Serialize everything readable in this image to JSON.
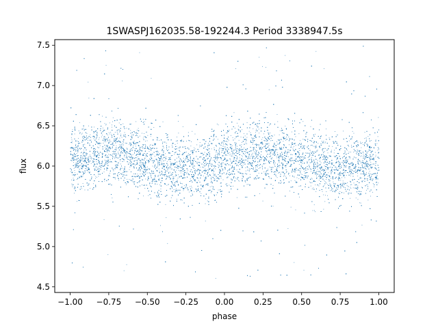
{
  "chart_data": {
    "type": "scatter",
    "title": "1SWASPJ162035.58-192244.3 Period 3338947.5s",
    "xlabel": "phase",
    "ylabel": "flux",
    "xlim": [
      -1.1,
      1.1
    ],
    "ylim": [
      4.43,
      7.57
    ],
    "x_ticks": [
      -1.0,
      -0.75,
      -0.5,
      -0.25,
      0.0,
      0.25,
      0.5,
      0.75,
      1.0
    ],
    "x_tick_labels": [
      "−1.00",
      "−0.75",
      "−0.50",
      "−0.25",
      "0.00",
      "0.25",
      "0.50",
      "0.75",
      "1.00"
    ],
    "y_ticks": [
      4.5,
      5.0,
      5.5,
      6.0,
      6.5,
      7.0,
      7.5
    ],
    "y_tick_labels": [
      "4.5",
      "5.0",
      "5.5",
      "6.0",
      "6.5",
      "7.0",
      "7.5"
    ],
    "grid": false,
    "legend": "none",
    "marker_color": "#1f77b4",
    "series": [
      {
        "x_range": [
          -1.0,
          1.0
        ],
        "center_y": 6.0,
        "typical_y_range": [
          5.4,
          6.6
        ],
        "outlier_y_range": [
          4.6,
          7.5
        ],
        "approx_points": 20000,
        "profile": [
          {
            "phase": -1.0,
            "center": 6.05
          },
          {
            "phase": -0.75,
            "center": 6.2
          },
          {
            "phase": -0.6,
            "center": 6.15
          },
          {
            "phase": -0.5,
            "center": 6.05
          },
          {
            "phase": -0.25,
            "center": 5.95
          },
          {
            "phase": 0.0,
            "center": 6.05
          },
          {
            "phase": 0.25,
            "center": 6.2
          },
          {
            "phase": 0.4,
            "center": 6.15
          },
          {
            "phase": 0.5,
            "center": 6.05
          },
          {
            "phase": 0.75,
            "center": 5.95
          },
          {
            "phase": 1.0,
            "center": 6.05
          }
        ]
      }
    ]
  }
}
